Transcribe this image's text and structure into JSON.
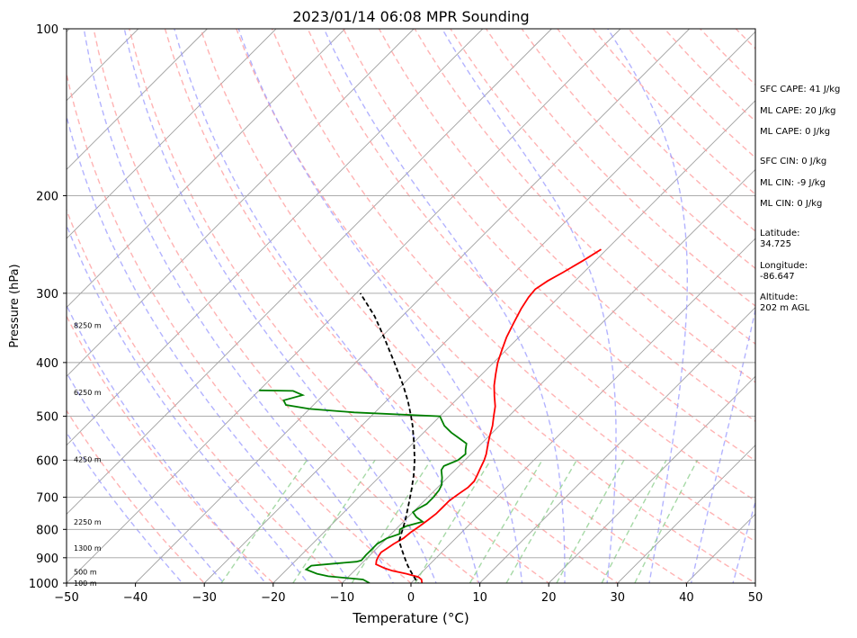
{
  "chart_data": {
    "type": "skew-t",
    "title": "2023/01/14 06:08 MPR Sounding",
    "xlabel": "Temperature (°C)",
    "ylabel": "Pressure (hPa)",
    "xlim": [
      -50,
      50
    ],
    "ylim": [
      1000,
      100
    ],
    "y_scale": "log",
    "x_ticks": [
      -50,
      -40,
      -30,
      -20,
      -10,
      0,
      10,
      20,
      30,
      40,
      50
    ],
    "y_ticks": [
      100,
      200,
      300,
      400,
      500,
      600,
      700,
      800,
      900,
      1000
    ],
    "x_tick_labels": [
      "−50",
      "−40",
      "−30",
      "−20",
      "−10",
      "0",
      "10",
      "20",
      "30",
      "40",
      "50"
    ],
    "y_tick_labels": [
      "100",
      "200",
      "300",
      "400",
      "500",
      "600",
      "700",
      "800",
      "900",
      "1000"
    ],
    "grid": true,
    "series": [
      {
        "color": "#ff0000",
        "points": [
          [
            1014,
            1.8
          ],
          [
            1000,
            1.6
          ],
          [
            985,
            1.0
          ],
          [
            975,
            0.2
          ],
          [
            962,
            -2.0
          ],
          [
            950,
            -4.5
          ],
          [
            940,
            -6.0
          ],
          [
            925,
            -7.8
          ],
          [
            910,
            -8.3
          ],
          [
            895,
            -8.6
          ],
          [
            880,
            -8.8
          ],
          [
            865,
            -8.5
          ],
          [
            850,
            -8.2
          ],
          [
            830,
            -7.6
          ],
          [
            810,
            -7.4
          ],
          [
            790,
            -7.0
          ],
          [
            770,
            -6.7
          ],
          [
            750,
            -6.4
          ],
          [
            730,
            -6.4
          ],
          [
            710,
            -6.4
          ],
          [
            690,
            -6.0
          ],
          [
            672,
            -5.6
          ],
          [
            655,
            -5.6
          ],
          [
            640,
            -6.0
          ],
          [
            620,
            -6.6
          ],
          [
            600,
            -7.2
          ],
          [
            585,
            -7.8
          ],
          [
            565,
            -8.8
          ],
          [
            545,
            -9.8
          ],
          [
            520,
            -11.0
          ],
          [
            500,
            -12.2
          ],
          [
            480,
            -13.4
          ],
          [
            460,
            -15.0
          ],
          [
            440,
            -16.6
          ],
          [
            420,
            -18.0
          ],
          [
            400,
            -19.4
          ],
          [
            380,
            -20.6
          ],
          [
            360,
            -21.8
          ],
          [
            340,
            -22.8
          ],
          [
            320,
            -23.8
          ],
          [
            305,
            -24.4
          ],
          [
            295,
            -24.6
          ],
          [
            285,
            -24.0
          ],
          [
            275,
            -23.0
          ],
          [
            262,
            -21.8
          ],
          [
            250,
            -20.8
          ]
        ]
      },
      {
        "color": "#008000",
        "points": [
          [
            1000,
            -6.0
          ],
          [
            985,
            -7.5
          ],
          [
            972,
            -13.0
          ],
          [
            962,
            -15.0
          ],
          [
            945,
            -17.2
          ],
          [
            930,
            -17.0
          ],
          [
            922,
            -14.0
          ],
          [
            915,
            -11.0
          ],
          [
            910,
            -10.5
          ],
          [
            890,
            -10.6
          ],
          [
            870,
            -10.6
          ],
          [
            850,
            -10.6
          ],
          [
            830,
            -10.0
          ],
          [
            815,
            -8.8
          ],
          [
            800,
            -9.4
          ],
          [
            790,
            -9.0
          ],
          [
            775,
            -7.2
          ],
          [
            760,
            -8.8
          ],
          [
            745,
            -10.0
          ],
          [
            735,
            -9.8
          ],
          [
            720,
            -9.2
          ],
          [
            700,
            -9.2
          ],
          [
            680,
            -9.4
          ],
          [
            665,
            -9.8
          ],
          [
            645,
            -10.8
          ],
          [
            625,
            -12.0
          ],
          [
            615,
            -12.2
          ],
          [
            600,
            -11.0
          ],
          [
            585,
            -10.8
          ],
          [
            575,
            -11.4
          ],
          [
            560,
            -12.2
          ],
          [
            548,
            -14.0
          ],
          [
            535,
            -16.0
          ],
          [
            520,
            -18.0
          ],
          [
            500,
            -20.0
          ],
          [
            492,
            -33.0
          ],
          [
            485,
            -40.0
          ],
          [
            477,
            -44.0
          ],
          [
            468,
            -45.0
          ],
          [
            458,
            -43.0
          ],
          [
            450,
            -45.0
          ],
          [
            449,
            -50.0
          ]
        ]
      },
      {
        "style": "dashed",
        "color": "#000000",
        "points": [
          [
            1014,
            1.8
          ],
          [
            986,
            0.2
          ],
          [
            960,
            -1.3
          ],
          [
            930,
            -3.0
          ],
          [
            900,
            -4.6
          ],
          [
            870,
            -6.2
          ],
          [
            840,
            -7.8
          ],
          [
            820,
            -8.4
          ],
          [
            790,
            -9.3
          ],
          [
            760,
            -10.3
          ],
          [
            720,
            -11.8
          ],
          [
            680,
            -13.4
          ],
          [
            640,
            -15.2
          ],
          [
            600,
            -17.3
          ],
          [
            560,
            -19.8
          ],
          [
            520,
            -22.6
          ],
          [
            500,
            -24.2
          ],
          [
            470,
            -26.8
          ],
          [
            440,
            -29.8
          ],
          [
            400,
            -34.4
          ],
          [
            360,
            -39.6
          ],
          [
            330,
            -44.0
          ],
          [
            300,
            -49.4
          ]
        ]
      }
    ],
    "height_labels": [
      {
        "pressure": 1000,
        "text": "100 m"
      },
      {
        "pressure": 955,
        "text": "500 m"
      },
      {
        "pressure": 865,
        "text": "1300 m"
      },
      {
        "pressure": 775,
        "text": "2250 m"
      },
      {
        "pressure": 598,
        "text": "4250 m"
      },
      {
        "pressure": 453,
        "text": "6250 m"
      },
      {
        "pressure": 343,
        "text": "8250 m"
      }
    ],
    "background_lines": {
      "isotherm_color": "#a0a0a0",
      "dry_adiabat_color": "#ff9999",
      "moist_adiabat_color": "#9999ff",
      "mixing_ratio_color": "#88cc88"
    }
  },
  "info": {
    "sfc_cape": "SFC CAPE: 41 J/kg",
    "ml_cape_1": "ML CAPE: 20 J/kg",
    "ml_cape_2": "ML CAPE: 0 J/kg",
    "sfc_cin": "SFC CIN: 0 J/kg",
    "ml_cin_1": "ML CIN: -9 J/kg",
    "ml_cin_2": "ML CIN: 0 J/kg",
    "latitude_label": "Latitude:",
    "latitude_value": "34.725",
    "longitude_label": "Longitude:",
    "longitude_value": "-86.647",
    "altitude_label": "Altitude:",
    "altitude_value": "202 m AGL"
  }
}
